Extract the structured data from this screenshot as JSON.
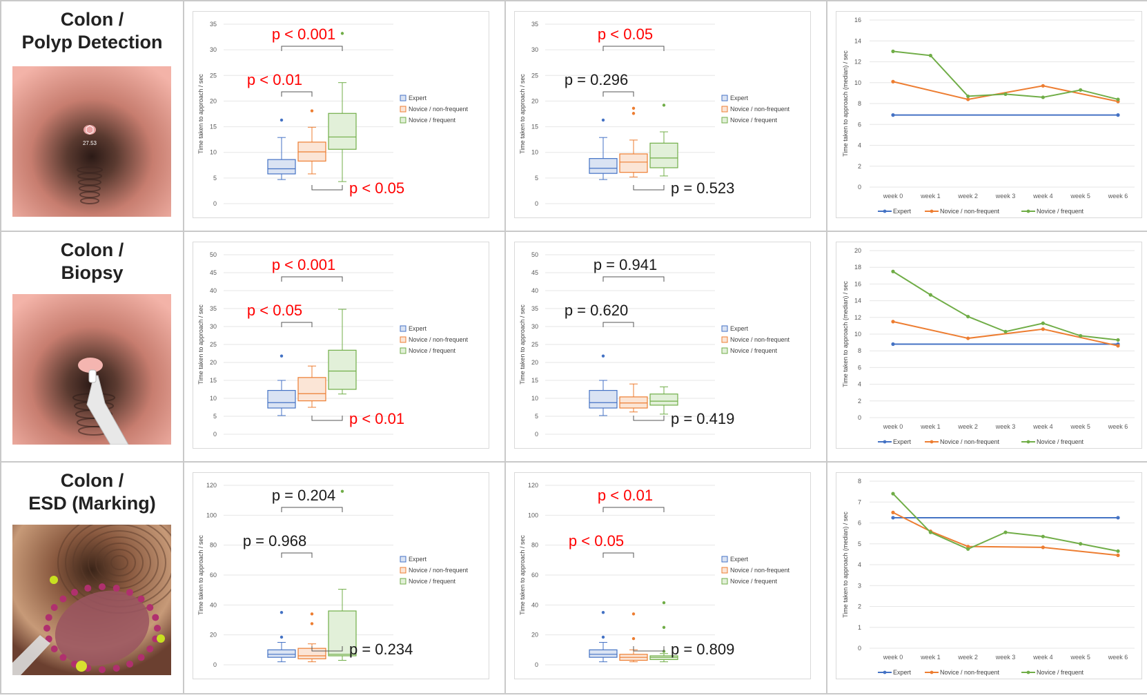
{
  "colors": {
    "expert": "#4472c4",
    "novice_nonfrequent": "#ed7d31",
    "novice_frequent": "#70ad47",
    "expert_fill": "#dae3f3",
    "novice_nonfrequent_fill": "#fbe5d6",
    "novice_frequent_fill": "#e2f0d9",
    "sig_red": "#ff0000",
    "text_dark": "#1a1a1a"
  },
  "rows": [
    {
      "title_line1": "Colon /",
      "title_line2": "Polyp Detection",
      "image_label": "27.53"
    },
    {
      "title_line1": "Colon /",
      "title_line2": "Biopsy"
    },
    {
      "title_line1": "Colon /",
      "title_line2": "ESD (Marking)"
    }
  ],
  "legend": {
    "box": [
      "Expert",
      "Novice / non-frequent",
      "Novice / frequent"
    ],
    "line": [
      "Expert",
      "Novice / non-frequent",
      "Novice / frequent"
    ]
  },
  "chart_data": [
    {
      "type": "box",
      "row": 0,
      "col": 0,
      "ylabel": "Time taken to approach / sec",
      "ylim": [
        0,
        35
      ],
      "yticks": [
        0,
        5,
        10,
        15,
        20,
        25,
        30,
        35
      ],
      "boxes": [
        {
          "name": "Expert",
          "min": 4.7,
          "q1": 5.8,
          "median": 6.8,
          "q3": 8.6,
          "max": 12.9,
          "outliers": [
            16.3
          ]
        },
        {
          "name": "Novice / non-frequent",
          "min": 5.8,
          "q1": 8.3,
          "median": 10.1,
          "q3": 12.0,
          "max": 14.9,
          "outliers": [
            18.1
          ]
        },
        {
          "name": "Novice / frequent",
          "min": 4.3,
          "q1": 10.6,
          "median": 13.0,
          "q3": 17.6,
          "max": 23.6,
          "outliers": [
            33.2
          ]
        }
      ],
      "brackets": [
        {
          "from": 0,
          "to": 2,
          "label": "p < 0.001",
          "significant": true,
          "position": "above"
        },
        {
          "from": 0,
          "to": 1,
          "label": "p < 0.01",
          "significant": true,
          "position": "above"
        },
        {
          "from": 1,
          "to": 2,
          "label": "p < 0.05",
          "significant": true,
          "position": "below"
        }
      ]
    },
    {
      "type": "box",
      "row": 0,
      "col": 1,
      "ylabel": "Time taken to approach / sec",
      "ylim": [
        0,
        35
      ],
      "yticks": [
        0,
        5,
        10,
        15,
        20,
        25,
        30,
        35
      ],
      "boxes": [
        {
          "name": "Expert",
          "min": 4.7,
          "q1": 5.9,
          "median": 6.9,
          "q3": 8.8,
          "max": 12.9,
          "outliers": [
            16.3
          ]
        },
        {
          "name": "Novice / non-frequent",
          "min": 5.2,
          "q1": 6.1,
          "median": 8.1,
          "q3": 9.7,
          "max": 12.4,
          "outliers": [
            17.6,
            18.6
          ]
        },
        {
          "name": "Novice / frequent",
          "min": 5.4,
          "q1": 7.0,
          "median": 8.9,
          "q3": 11.8,
          "max": 14.0,
          "outliers": [
            19.2
          ]
        }
      ],
      "brackets": [
        {
          "from": 0,
          "to": 2,
          "label": "p < 0.05",
          "significant": true,
          "position": "above"
        },
        {
          "from": 0,
          "to": 1,
          "label": "p = 0.296",
          "significant": false,
          "position": "above"
        },
        {
          "from": 1,
          "to": 2,
          "label": "p = 0.523",
          "significant": false,
          "position": "below"
        }
      ]
    },
    {
      "type": "line",
      "row": 0,
      "col": 2,
      "ylabel": "Time taken to approach (median) / sec",
      "ylim": [
        0,
        16
      ],
      "yticks": [
        0,
        2,
        4,
        6,
        8,
        10,
        12,
        14,
        16
      ],
      "categories": [
        "week 0",
        "week 1",
        "week 2",
        "week 3",
        "week 4",
        "week 5",
        "week 6"
      ],
      "series": [
        {
          "name": "Expert",
          "x": [
            0,
            6
          ],
          "values": [
            6.9,
            6.9
          ]
        },
        {
          "name": "Novice / non-frequent",
          "x": [
            0,
            2,
            4,
            6
          ],
          "values": [
            10.1,
            8.4,
            9.7,
            8.2
          ]
        },
        {
          "name": "Novice / frequent",
          "x": [
            0,
            1,
            2,
            3,
            4,
            5,
            6
          ],
          "values": [
            13.0,
            12.6,
            8.7,
            8.9,
            8.6,
            9.3,
            8.4
          ]
        }
      ]
    },
    {
      "type": "box",
      "row": 1,
      "col": 0,
      "ylabel": "Time taken to approach / sec",
      "ylim": [
        0,
        50
      ],
      "yticks": [
        0,
        5,
        10,
        15,
        20,
        25,
        30,
        35,
        40,
        45,
        50
      ],
      "boxes": [
        {
          "name": "Expert",
          "min": 5.2,
          "q1": 7.3,
          "median": 8.8,
          "q3": 12.2,
          "max": 15.0,
          "outliers": [
            21.8
          ]
        },
        {
          "name": "Novice / non-frequent",
          "min": 7.5,
          "q1": 9.3,
          "median": 11.3,
          "q3": 15.8,
          "max": 19.0,
          "outliers": []
        },
        {
          "name": "Novice / frequent",
          "min": 11.2,
          "q1": 12.5,
          "median": 17.6,
          "q3": 23.4,
          "max": 34.8,
          "outliers": []
        }
      ],
      "brackets": [
        {
          "from": 0,
          "to": 2,
          "label": "p < 0.001",
          "significant": true,
          "position": "above"
        },
        {
          "from": 0,
          "to": 1,
          "label": "p < 0.05",
          "significant": true,
          "position": "above"
        },
        {
          "from": 1,
          "to": 2,
          "label": "p < 0.01",
          "significant": true,
          "position": "below"
        }
      ]
    },
    {
      "type": "box",
      "row": 1,
      "col": 1,
      "ylabel": "Time taken to approach / sec",
      "ylim": [
        0,
        50
      ],
      "yticks": [
        0,
        5,
        10,
        15,
        20,
        25,
        30,
        35,
        40,
        45,
        50
      ],
      "boxes": [
        {
          "name": "Expert",
          "min": 5.2,
          "q1": 7.3,
          "median": 8.8,
          "q3": 12.2,
          "max": 15.0,
          "outliers": [
            21.8
          ]
        },
        {
          "name": "Novice / non-frequent",
          "min": 6.2,
          "q1": 7.3,
          "median": 8.7,
          "q3": 10.4,
          "max": 14.0,
          "outliers": []
        },
        {
          "name": "Novice / frequent",
          "min": 5.6,
          "q1": 8.1,
          "median": 9.2,
          "q3": 11.2,
          "max": 13.2,
          "outliers": []
        }
      ],
      "brackets": [
        {
          "from": 0,
          "to": 2,
          "label": "p = 0.941",
          "significant": false,
          "position": "above"
        },
        {
          "from": 0,
          "to": 1,
          "label": "p = 0.620",
          "significant": false,
          "position": "above"
        },
        {
          "from": 1,
          "to": 2,
          "label": "p = 0.419",
          "significant": false,
          "position": "below"
        }
      ]
    },
    {
      "type": "line",
      "row": 1,
      "col": 2,
      "ylabel": "Time taken to approach (median) / sec",
      "ylim": [
        0,
        20
      ],
      "yticks": [
        0,
        2,
        4,
        6,
        8,
        10,
        12,
        14,
        16,
        18,
        20
      ],
      "categories": [
        "week 0",
        "week 1",
        "week 2",
        "week 3",
        "week 4",
        "week 5",
        "week 6"
      ],
      "series": [
        {
          "name": "Expert",
          "x": [
            0,
            6
          ],
          "values": [
            8.8,
            8.8
          ]
        },
        {
          "name": "Novice / non-frequent",
          "x": [
            0,
            2,
            4,
            6
          ],
          "values": [
            11.5,
            9.5,
            10.6,
            8.6
          ]
        },
        {
          "name": "Novice / frequent",
          "x": [
            0,
            1,
            2,
            3,
            4,
            5,
            6
          ],
          "values": [
            17.5,
            14.7,
            12.1,
            10.3,
            11.3,
            9.8,
            9.3
          ]
        }
      ]
    },
    {
      "type": "box",
      "row": 2,
      "col": 0,
      "ylabel": "Time taken to approach / sec",
      "ylim": [
        0,
        120
      ],
      "yticks": [
        0,
        20,
        40,
        60,
        80,
        100,
        120
      ],
      "boxes": [
        {
          "name": "Expert",
          "min": 2.0,
          "q1": 5.0,
          "median": 7.0,
          "q3": 10.0,
          "max": 15.0,
          "outliers": [
            18.5,
            35.0
          ]
        },
        {
          "name": "Novice / non-frequent",
          "min": 2.0,
          "q1": 4.0,
          "median": 6.0,
          "q3": 11.0,
          "max": 14.0,
          "outliers": [
            27.5,
            34.0
          ]
        },
        {
          "name": "Novice / frequent",
          "min": 3.0,
          "q1": 6.0,
          "median": 7.0,
          "q3": 36.0,
          "max": 50.5,
          "outliers": [
            116.0
          ]
        }
      ],
      "brackets": [
        {
          "from": 0,
          "to": 2,
          "label": "p = 0.204",
          "significant": false,
          "position": "above"
        },
        {
          "from": 0,
          "to": 1,
          "label": "p = 0.968",
          "significant": false,
          "position": "above"
        },
        {
          "from": 1,
          "to": 2,
          "label": "p = 0.234",
          "significant": false,
          "position": "below"
        }
      ]
    },
    {
      "type": "box",
      "row": 2,
      "col": 1,
      "ylabel": "Time taken to approach / sec",
      "ylim": [
        0,
        120
      ],
      "yticks": [
        0,
        20,
        40,
        60,
        80,
        100,
        120
      ],
      "boxes": [
        {
          "name": "Expert",
          "min": 2.0,
          "q1": 5.0,
          "median": 7.0,
          "q3": 10.0,
          "max": 15.0,
          "outliers": [
            18.5,
            35.0
          ]
        },
        {
          "name": "Novice / non-frequent",
          "min": 2.0,
          "q1": 3.0,
          "median": 5.0,
          "q3": 7.0,
          "max": 10.0,
          "outliers": [
            17.5,
            34.0
          ]
        },
        {
          "name": "Novice / frequent",
          "min": 2.0,
          "q1": 3.5,
          "median": 5.0,
          "q3": 6.0,
          "max": 7.5,
          "outliers": [
            9.0,
            25.0,
            41.5
          ]
        }
      ],
      "brackets": [
        {
          "from": 0,
          "to": 2,
          "label": "p < 0.01",
          "significant": true,
          "position": "above"
        },
        {
          "from": 0,
          "to": 1,
          "label": "p < 0.05",
          "significant": true,
          "position": "above"
        },
        {
          "from": 1,
          "to": 2,
          "label": "p = 0.809",
          "significant": false,
          "position": "below"
        }
      ]
    },
    {
      "type": "line",
      "row": 2,
      "col": 2,
      "ylabel": "Time taken to approach (median) / sec",
      "ylim": [
        0,
        8
      ],
      "yticks": [
        0,
        1,
        2,
        3,
        4,
        5,
        6,
        7,
        8
      ],
      "categories": [
        "week 0",
        "week 1",
        "week 2",
        "week 3",
        "week 4",
        "week 5",
        "week 6"
      ],
      "series": [
        {
          "name": "Expert",
          "x": [
            0,
            6
          ],
          "values": [
            6.25,
            6.25
          ]
        },
        {
          "name": "Novice / non-frequent",
          "x": [
            0,
            1,
            2,
            4,
            6
          ],
          "values": [
            6.5,
            5.6,
            4.87,
            4.83,
            4.45
          ]
        },
        {
          "name": "Novice / frequent",
          "x": [
            0,
            1,
            2,
            3,
            4,
            5,
            6
          ],
          "values": [
            7.4,
            5.55,
            4.75,
            5.55,
            5.35,
            5.0,
            4.65
          ]
        }
      ]
    }
  ]
}
